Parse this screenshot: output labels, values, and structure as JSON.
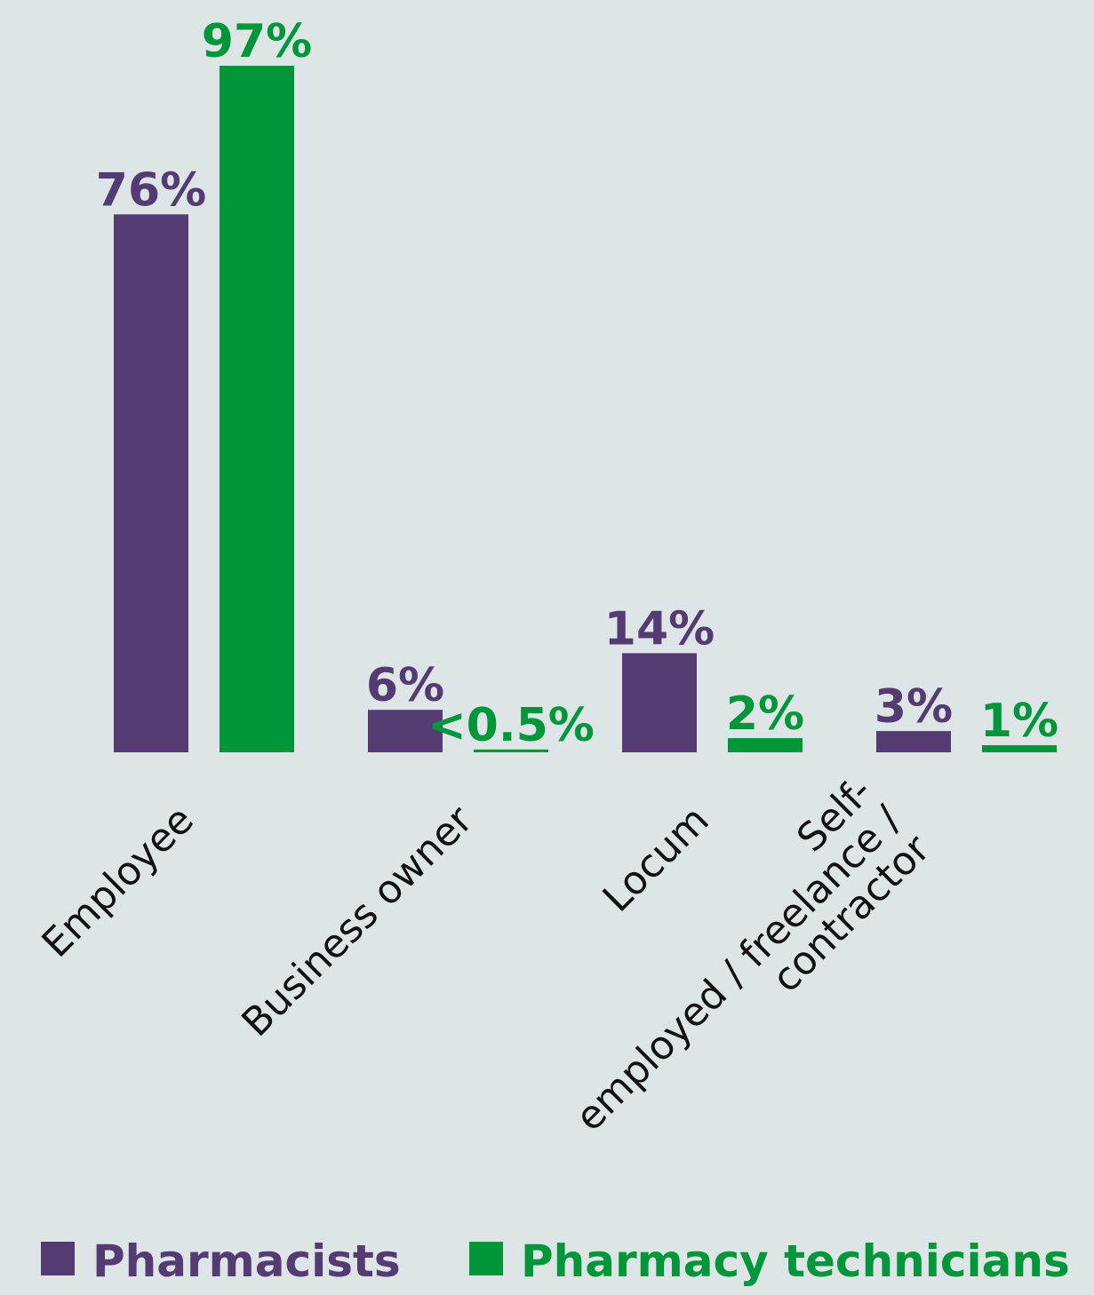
{
  "chart_data": {
    "type": "bar",
    "categories": [
      "Employee",
      "Business owner",
      "Locum",
      "Self-employed / freelance / contractor"
    ],
    "category_lines": [
      [
        "Employee"
      ],
      [
        "Business owner"
      ],
      [
        "Locum"
      ],
      [
        "Self-",
        "employed / freelance /",
        "contractor"
      ]
    ],
    "series": [
      {
        "name": "Pharmacists",
        "color": "#553b73",
        "values": [
          76,
          6,
          14,
          3
        ],
        "labels": [
          "76%",
          "6%",
          "14%",
          "3%"
        ]
      },
      {
        "name": "Pharmacy technicians",
        "color": "#009639",
        "values": [
          97,
          0.4,
          2,
          1
        ],
        "labels": [
          "97%",
          "<0.5%",
          "2%",
          "1%"
        ]
      }
    ],
    "title": "",
    "xlabel": "",
    "ylabel": "",
    "ylim": [
      0,
      97
    ],
    "grid": false,
    "legend": "bottom"
  }
}
